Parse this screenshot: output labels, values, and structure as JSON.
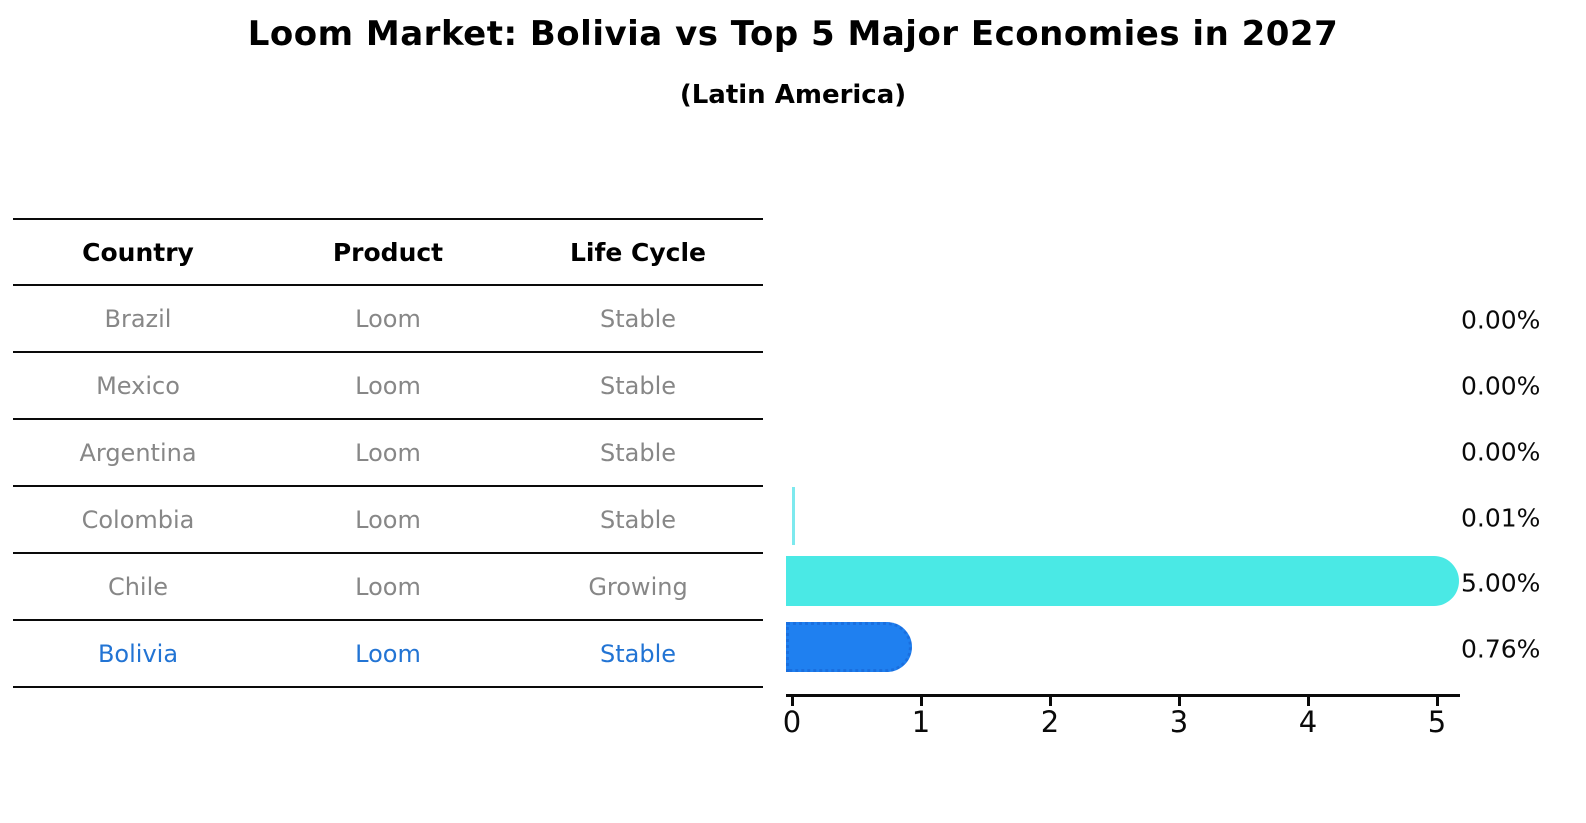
{
  "title": "Loom Market: Bolivia vs Top 5 Major Economies in 2027",
  "subtitle": "(Latin America)",
  "table": {
    "headers": [
      "Country",
      "Product",
      "Life Cycle"
    ],
    "rows": [
      {
        "country": "Brazil",
        "product": "Loom",
        "life_cycle": "Stable",
        "highlighted": false
      },
      {
        "country": "Mexico",
        "product": "Loom",
        "life_cycle": "Stable",
        "highlighted": false
      },
      {
        "country": "Argentina",
        "product": "Loom",
        "life_cycle": "Stable",
        "highlighted": false
      },
      {
        "country": "Colombia",
        "product": "Loom",
        "life_cycle": "Stable",
        "highlighted": false
      },
      {
        "country": "Chile",
        "product": "Loom",
        "life_cycle": "Growing",
        "highlighted": false
      },
      {
        "country": "Bolivia",
        "product": "Loom",
        "life_cycle": "Stable",
        "highlighted": true
      }
    ]
  },
  "chart_data": {
    "type": "bar",
    "orientation": "horizontal",
    "title": "Loom Market: Bolivia vs Top 5 Major Economies in 2027",
    "subtitle": "(Latin America)",
    "categories": [
      "Brazil",
      "Mexico",
      "Argentina",
      "Colombia",
      "Chile",
      "Bolivia"
    ],
    "values": [
      0.0,
      0.0,
      0.0,
      0.01,
      5.0,
      0.76
    ],
    "value_labels": [
      "0.00%",
      "0.00%",
      "0.00%",
      "0.01%",
      "5.00%",
      "0.76%"
    ],
    "bar_colors": [
      "#4ae9e5",
      "#4ae9e5",
      "#4ae9e5",
      "#7de9ee",
      "#4ae9e5",
      "#1f80f0"
    ],
    "highlight_index": 5,
    "xlim": [
      0,
      5.25
    ],
    "x_ticks": [
      "0",
      "1",
      "2",
      "3",
      "4",
      "5"
    ],
    "grid": false
  },
  "colors": {
    "default_bar": "#4ae9e5",
    "highlight_bar": "#1f80f0",
    "highlight_text": "#2274d4",
    "muted_text": "#878787",
    "axis": "#0a0a0a",
    "background": "#ffffff"
  }
}
